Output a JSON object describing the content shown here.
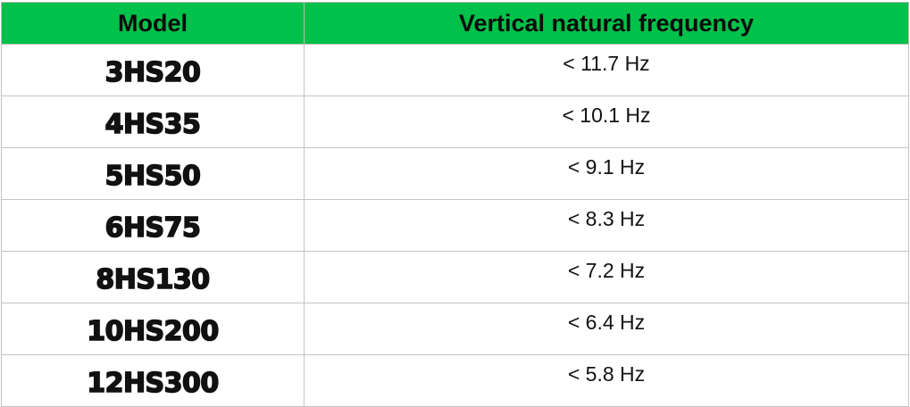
{
  "header": {
    "model": "Model",
    "frequency": "Vertical natural frequency"
  },
  "rows": [
    {
      "model": "3HS20",
      "frequency": "< 11.7 Hz"
    },
    {
      "model": "4HS35",
      "frequency": "< 10.1 Hz"
    },
    {
      "model": "5HS50",
      "frequency": "< 9.1 Hz"
    },
    {
      "model": "6HS75",
      "frequency": "< 8.3 Hz"
    },
    {
      "model": "8HS130",
      "frequency": "< 7.2 Hz"
    },
    {
      "model": "10HS200",
      "frequency": "< 6.4 Hz"
    },
    {
      "model": "12HS300",
      "frequency": "< 5.8 Hz"
    }
  ],
  "colors": {
    "header_background": "#00c14a",
    "grid_line": "#c4c4c4",
    "text": "#111111"
  }
}
